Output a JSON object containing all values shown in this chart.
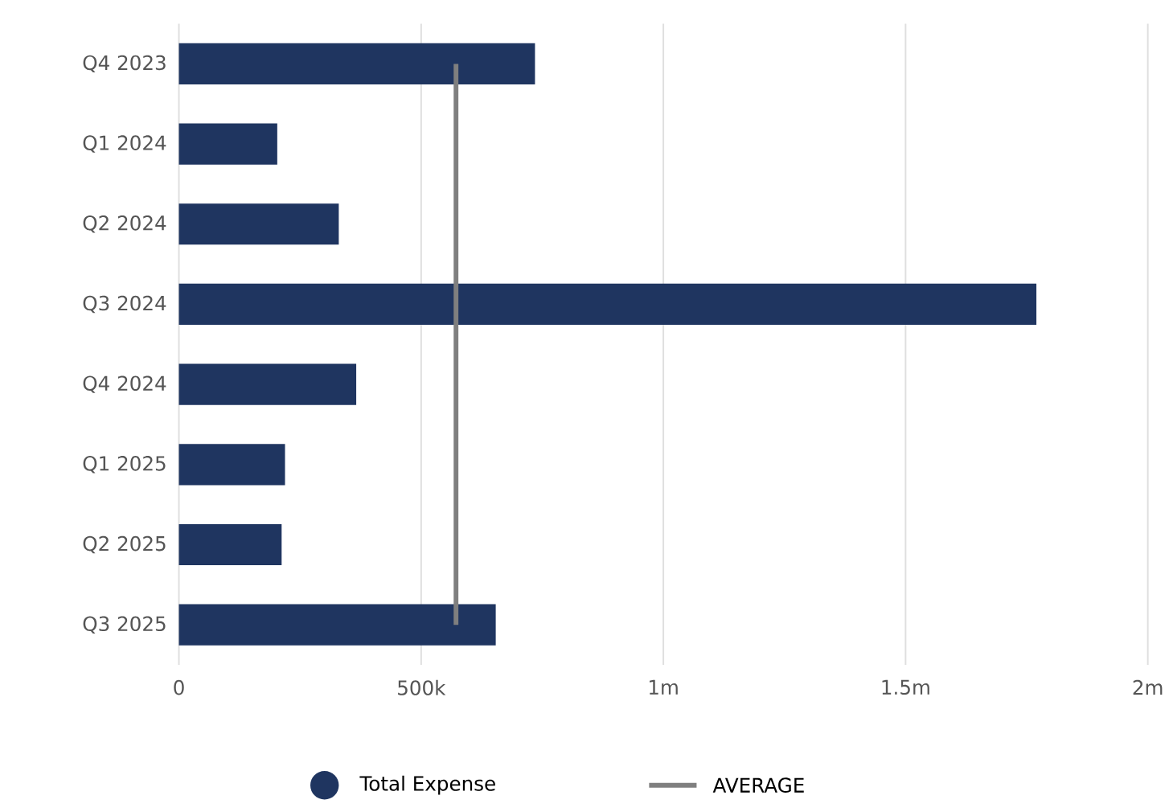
{
  "chart_data": {
    "type": "bar",
    "orientation": "horizontal",
    "categories": [
      "Q4 2023",
      "Q1 2024",
      "Q2 2024",
      "Q3 2024",
      "Q4 2024",
      "Q1 2025",
      "Q2 2025",
      "Q3 2025"
    ],
    "series": [
      {
        "name": "Total Expense",
        "color": "#1f3560",
        "values": [
          735000,
          203000,
          330000,
          1770000,
          366000,
          219000,
          212000,
          654000
        ]
      }
    ],
    "xlim": [
      0,
      2000000
    ],
    "xticks": [
      {
        "value": 0,
        "label": "0"
      },
      {
        "value": 500000,
        "label": "500k"
      },
      {
        "value": 1000000,
        "label": "1m"
      },
      {
        "value": 1500000,
        "label": "1.5m"
      },
      {
        "value": 2000000,
        "label": "2m"
      }
    ],
    "ref_lines": [
      {
        "axis": "x",
        "value": 572000,
        "label": "AVERAGE",
        "color": "#7f7f7f",
        "line_style": "solid"
      }
    ],
    "grid": "x",
    "legend": "bottom"
  }
}
